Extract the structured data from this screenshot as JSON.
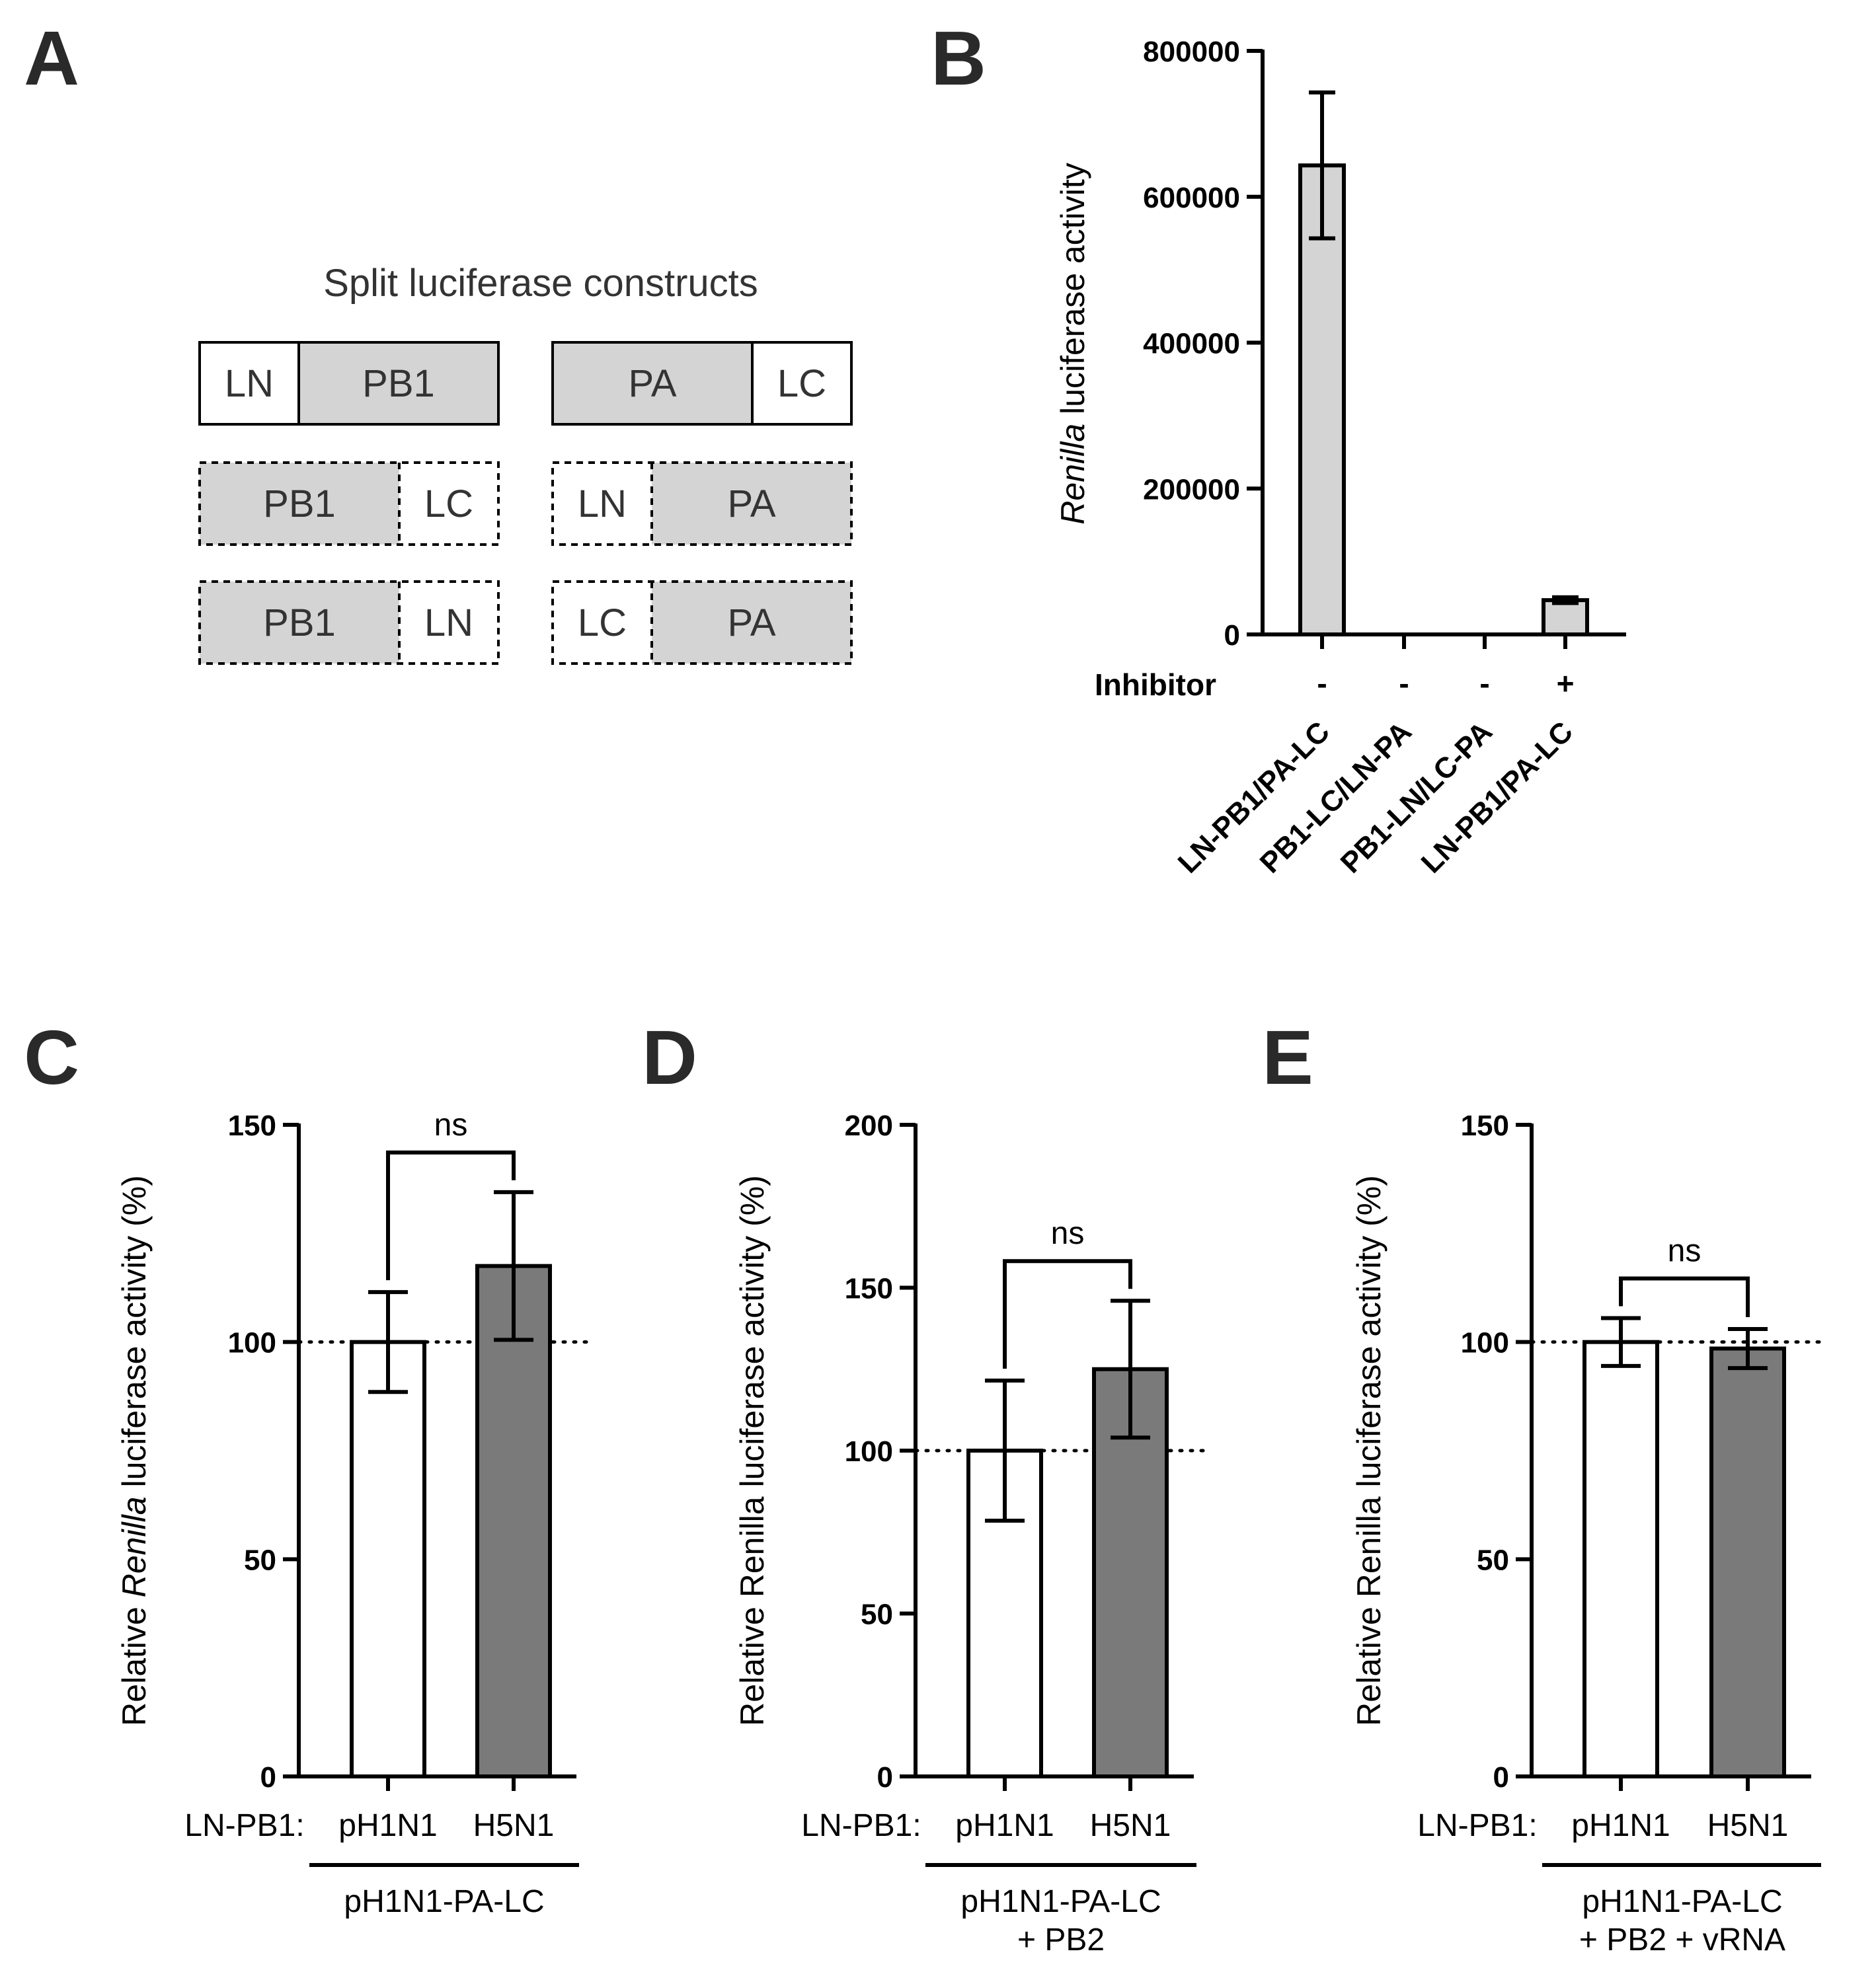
{
  "panels": {
    "a": {
      "letter": "A"
    },
    "b": {
      "letter": "B"
    },
    "c": {
      "letter": "C"
    },
    "d": {
      "letter": "D"
    },
    "e": {
      "letter": "E"
    }
  },
  "diagram": {
    "title": "Split luciferase constructs",
    "rows": [
      {
        "left": [
          {
            "label": "LN",
            "fill": "white"
          },
          {
            "label": "PB1",
            "fill": "gray"
          }
        ],
        "right": [
          {
            "label": "PA",
            "fill": "gray"
          },
          {
            "label": "LC",
            "fill": "white"
          }
        ],
        "dashed": false
      },
      {
        "left": [
          {
            "label": "PB1",
            "fill": "gray"
          },
          {
            "label": "LC",
            "fill": "white"
          }
        ],
        "right": [
          {
            "label": "LN",
            "fill": "white"
          },
          {
            "label": "PA",
            "fill": "gray"
          }
        ],
        "dashed": true
      },
      {
        "left": [
          {
            "label": "PB1",
            "fill": "gray"
          },
          {
            "label": "LN",
            "fill": "white"
          }
        ],
        "right": [
          {
            "label": "LC",
            "fill": "white"
          },
          {
            "label": "PA",
            "fill": "gray"
          }
        ],
        "dashed": true
      }
    ]
  },
  "colors": {
    "light_gray": "#d4d4d4",
    "dark_gray": "#7a7a7a",
    "white": "#ffffff",
    "black": "#000000"
  },
  "chart_data": [
    {
      "id": "B",
      "type": "bar",
      "ylabel_italic": "Renilla",
      "ylabel_rest": " luciferase activity",
      "ylim": [
        0,
        800000
      ],
      "yticks": [
        0,
        200000,
        400000,
        600000,
        800000
      ],
      "ytick_labels": [
        "0",
        "200000",
        "400000",
        "600000",
        "800000"
      ],
      "categories": [
        "LN-PB1/PA-LC",
        "PB1-LC/LN-PA",
        "PB1-LN/LC-PA",
        "LN-PB1/PA-LC"
      ],
      "values": [
        643000,
        0,
        0,
        47000
      ],
      "errors": [
        100000,
        0,
        0,
        4000
      ],
      "row_label": "Inhibitor",
      "inhibitor": [
        "-",
        "-",
        "-",
        "+"
      ],
      "bar_color": "#d4d4d4"
    },
    {
      "id": "C",
      "type": "bar",
      "ylabel_pre": "Relative ",
      "ylabel_italic": "Renilla",
      "ylabel_rest": " luciferase activity (%)",
      "ylim": [
        0,
        150
      ],
      "yticks": [
        0,
        50,
        100,
        150
      ],
      "ytick_labels": [
        "0",
        "50",
        "100",
        "150"
      ],
      "reference_line": 100,
      "categories": [
        "pH1N1",
        "H5N1"
      ],
      "values": [
        100,
        117.5
      ],
      "errors": [
        11.5,
        17
      ],
      "bar_colors": [
        "#ffffff",
        "#7a7a7a"
      ],
      "row_prefix": "LN-PB1:",
      "group_label": [
        "pH1N1-PA-LC"
      ],
      "significance": "ns"
    },
    {
      "id": "D",
      "type": "bar",
      "ylabel": "Relative Renilla luciferase activity (%)",
      "ylim": [
        0,
        200
      ],
      "yticks": [
        0,
        50,
        100,
        150,
        200
      ],
      "ytick_labels": [
        "0",
        "50",
        "100",
        "150",
        "200"
      ],
      "reference_line": 100,
      "categories": [
        "pH1N1",
        "H5N1"
      ],
      "values": [
        100,
        125
      ],
      "errors": [
        21.5,
        21
      ],
      "bar_colors": [
        "#ffffff",
        "#7a7a7a"
      ],
      "row_prefix": "LN-PB1:",
      "group_label": [
        "pH1N1-PA-LC",
        "+ PB2"
      ],
      "significance": "ns"
    },
    {
      "id": "E",
      "type": "bar",
      "ylabel": "Relative Renilla luciferase activity (%)",
      "ylim": [
        0,
        150
      ],
      "yticks": [
        0,
        50,
        100,
        150
      ],
      "ytick_labels": [
        "0",
        "50",
        "100",
        "150"
      ],
      "reference_line": 100,
      "categories": [
        "pH1N1",
        "H5N1"
      ],
      "values": [
        100,
        98.5
      ],
      "errors": [
        5.5,
        4.5
      ],
      "bar_colors": [
        "#ffffff",
        "#7a7a7a"
      ],
      "row_prefix": "LN-PB1:",
      "group_label": [
        "pH1N1-PA-LC",
        "+ PB2 + vRNA"
      ],
      "significance": "ns"
    }
  ]
}
